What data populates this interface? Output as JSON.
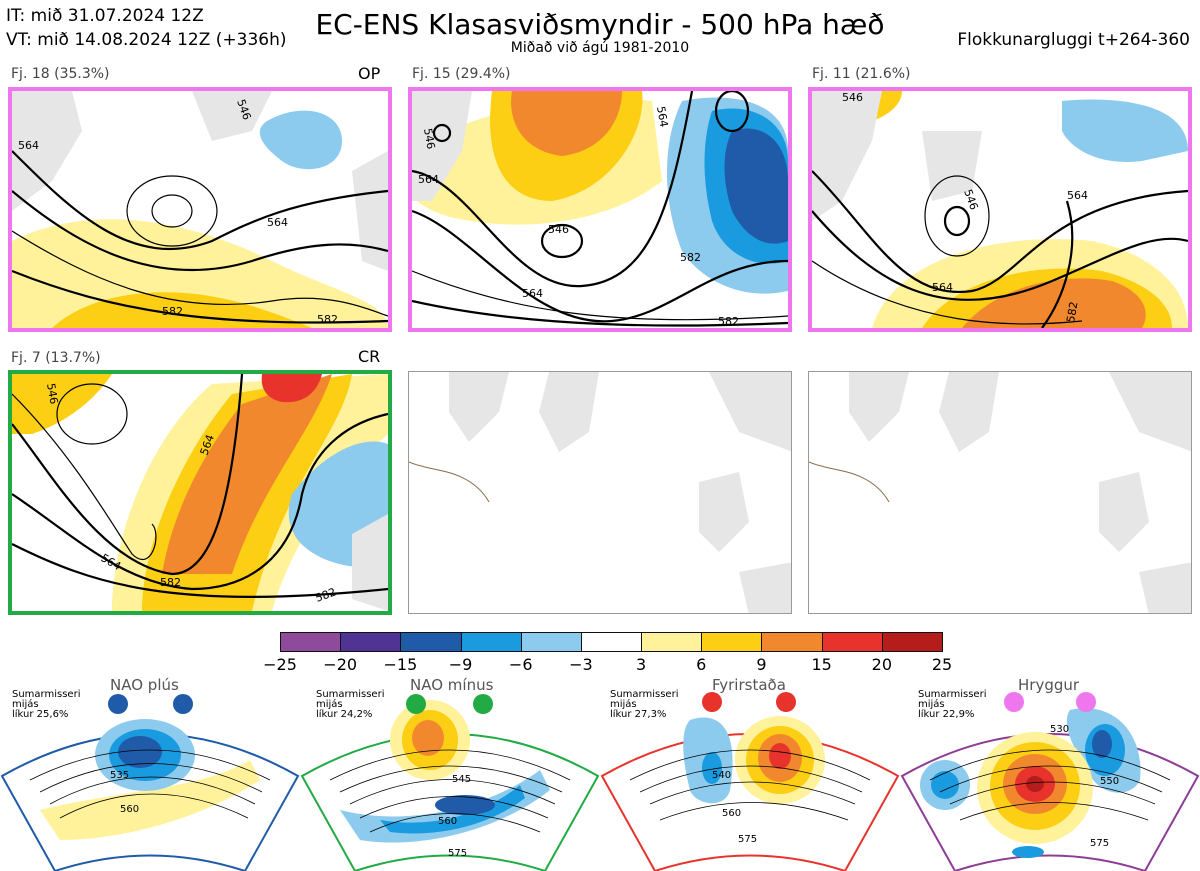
{
  "header": {
    "it_line": "IT: mið 31.07.2024 12Z",
    "vt_line": "VT: mið 14.08.2024 12Z  (+336h)",
    "title": "EC-ENS Klasasviðsmyndir - 500 hPa hæð",
    "subtitle": "Miðað við ágú 1981-2010",
    "window": "Flokkunargluggi t+264-360"
  },
  "clusters": [
    {
      "label": "Fj. 18 (35.3%)",
      "tag": "OP",
      "frame_color": "#ee77ee",
      "contours": [
        "546",
        "564",
        "564",
        "582",
        "582"
      ]
    },
    {
      "label": "Fj. 15 (29.4%)",
      "tag": "",
      "frame_color": "#ee77ee",
      "contours": [
        "546",
        "564",
        "546",
        "564",
        "564",
        "582",
        "582"
      ]
    },
    {
      "label": "Fj. 11 (21.6%)",
      "tag": "",
      "frame_color": "#ee77ee",
      "contours": [
        "546",
        "546",
        "564",
        "564",
        "582"
      ]
    },
    {
      "label": "Fj. 7 (13.7%)",
      "tag": "CR",
      "frame_color": "#22aa44",
      "contours": [
        "546",
        "564",
        "564",
        "582",
        "582"
      ]
    }
  ],
  "colorbar": {
    "ticks": [
      "−25",
      "−20",
      "−15",
      "−9",
      "−6",
      "−3",
      "3",
      "6",
      "9",
      "15",
      "20",
      "25"
    ],
    "colors": [
      "#8e4b9b",
      "#4f3494",
      "#1f5ba8",
      "#1a9be0",
      "#8ccbee",
      "#ffffff",
      "#fff29a",
      "#fccf14",
      "#f2882e",
      "#e8332c",
      "#b51d1d"
    ]
  },
  "regimes": [
    {
      "title": "NAO plús",
      "note_lines": [
        "Sumarmisseri",
        "mijás",
        "líkur 25,6%"
      ],
      "frame_color": "#1f5ba8",
      "dot_color": "#1f5ba8",
      "contours": [
        "535",
        "560"
      ]
    },
    {
      "title": "NAO mínus",
      "note_lines": [
        "Sumarmisseri",
        "mijás",
        "líkur 24,2%"
      ],
      "frame_color": "#22aa44",
      "dot_color": "#22aa44",
      "contours": [
        "545",
        "560",
        "575"
      ]
    },
    {
      "title": "Fyrirstaða",
      "note_lines": [
        "Sumarmisseri",
        "mijás",
        "líkur 27,3%"
      ],
      "frame_color": "#e8332c",
      "dot_color": "#e8332c",
      "contours": [
        "540",
        "560",
        "575"
      ]
    },
    {
      "title": "Hryggur",
      "note_lines": [
        "Sumarmisseri",
        "mijás",
        "líkur 22,9%"
      ],
      "frame_color": "#8e3d96",
      "dot_color": "#ee77ee",
      "contours": [
        "530",
        "550",
        "575"
      ]
    }
  ]
}
